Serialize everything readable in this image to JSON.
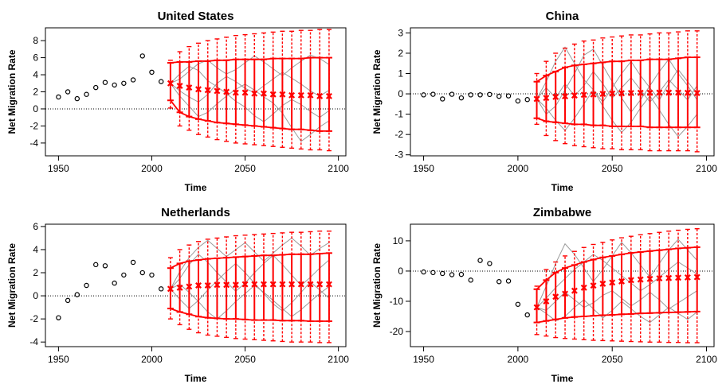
{
  "chart_data": [
    {
      "type": "scatter",
      "title": "United States",
      "xlabel": "Time",
      "ylabel": "Net Migration Rate",
      "xlim": [
        1943,
        2104
      ],
      "ylim": [
        -5.5,
        9.5
      ],
      "xticks": [
        1950,
        2000,
        2050,
        2100
      ],
      "yticks": [
        -4,
        -2,
        0,
        2,
        4,
        6,
        8
      ],
      "observed": {
        "x": [
          1950,
          1955,
          1960,
          1965,
          1970,
          1975,
          1980,
          1985,
          1990,
          1995,
          2000,
          2005
        ],
        "y": [
          1.4,
          2.0,
          1.2,
          1.7,
          2.5,
          3.1,
          2.8,
          3.0,
          3.4,
          6.2,
          4.3,
          3.2
        ]
      },
      "projection": {
        "x": [
          2010,
          2015,
          2020,
          2025,
          2030,
          2035,
          2040,
          2045,
          2050,
          2055,
          2060,
          2065,
          2070,
          2075,
          2080,
          2085,
          2090,
          2095
        ],
        "median": [
          3.0,
          2.7,
          2.5,
          2.3,
          2.2,
          2.1,
          2.0,
          1.9,
          1.9,
          1.8,
          1.8,
          1.7,
          1.7,
          1.6,
          1.6,
          1.6,
          1.5,
          1.5
        ],
        "pi80_lower": [
          1.0,
          -0.4,
          -0.9,
          -1.2,
          -1.4,
          -1.6,
          -1.7,
          -1.8,
          -1.9,
          -2.0,
          -2.1,
          -2.2,
          -2.3,
          -2.4,
          -2.4,
          -2.5,
          -2.6,
          -2.6
        ],
        "pi80_upper": [
          5.4,
          5.5,
          5.5,
          5.6,
          5.6,
          5.7,
          5.7,
          5.8,
          5.8,
          5.8,
          5.8,
          5.9,
          5.9,
          5.9,
          5.9,
          6.0,
          6.0,
          6.0
        ],
        "pi95_lower": [
          0.1,
          -2.0,
          -2.5,
          -3.0,
          -3.3,
          -3.6,
          -3.8,
          -4.0,
          -4.1,
          -4.2,
          -4.3,
          -4.4,
          -4.5,
          -4.6,
          -4.7,
          -4.8,
          -4.8,
          -4.9
        ],
        "pi95_upper": [
          5.7,
          6.7,
          7.3,
          7.7,
          8.0,
          8.2,
          8.4,
          8.6,
          8.7,
          8.8,
          8.9,
          9.0,
          9.1,
          9.1,
          9.2,
          9.2,
          9.3,
          9.3
        ],
        "trajectories": [
          [
            3.0,
            2.1,
            1.4,
            0.8,
            1.7,
            3.0,
            3.8,
            3.2,
            2.4,
            1.9,
            2.7,
            3.5,
            4.3,
            3.6,
            2.9,
            2.1,
            1.5,
            2.2
          ],
          [
            3.0,
            4.1,
            5.0,
            4.5,
            3.3,
            2.6,
            1.8,
            0.9,
            0.2,
            -0.8,
            -1.5,
            -0.6,
            0.4,
            1.1,
            0.5,
            -0.3,
            -1.0,
            -0.2
          ],
          [
            3.0,
            1.5,
            0.3,
            -0.9,
            -0.4,
            0.6,
            1.5,
            2.3,
            2.9,
            2.2,
            1.4,
            0.7,
            -0.5,
            -2.2,
            -3.8,
            -3.0,
            -2.1,
            -1.4
          ],
          [
            3.0,
            3.5,
            4.4,
            5.3,
            5.7,
            4.8,
            4.1,
            4.6,
            5.4,
            6.2,
            5.5,
            4.7,
            3.9,
            4.8,
            5.6,
            6.3,
            5.9,
            5.2
          ]
        ]
      }
    },
    {
      "type": "scatter",
      "title": "China",
      "xlabel": "Time",
      "ylabel": "Net Migration Rate",
      "xlim": [
        1943,
        2104
      ],
      "ylim": [
        -3.05,
        3.25
      ],
      "xticks": [
        1950,
        2000,
        2050,
        2100
      ],
      "yticks": [
        -3,
        -2,
        -1,
        0,
        1,
        2,
        3
      ],
      "observed": {
        "x": [
          1950,
          1955,
          1960,
          1965,
          1970,
          1975,
          1980,
          1985,
          1990,
          1995,
          2000,
          2005
        ],
        "y": [
          -0.05,
          -0.02,
          -0.25,
          -0.02,
          -0.2,
          -0.05,
          -0.05,
          -0.03,
          -0.12,
          -0.1,
          -0.35,
          -0.28
        ]
      },
      "projection": {
        "x": [
          2010,
          2015,
          2020,
          2025,
          2030,
          2035,
          2040,
          2045,
          2050,
          2055,
          2060,
          2065,
          2070,
          2075,
          2080,
          2085,
          2090,
          2095
        ],
        "median": [
          -0.25,
          -0.2,
          -0.15,
          -0.12,
          -0.08,
          -0.05,
          -0.03,
          0.0,
          0.02,
          0.03,
          0.04,
          0.05,
          0.05,
          0.06,
          0.06,
          0.06,
          0.05,
          0.04
        ],
        "pi80_lower": [
          -1.2,
          -1.35,
          -1.4,
          -1.45,
          -1.5,
          -1.5,
          -1.55,
          -1.55,
          -1.6,
          -1.6,
          -1.6,
          -1.6,
          -1.65,
          -1.65,
          -1.65,
          -1.65,
          -1.65,
          -1.65
        ],
        "pi80_upper": [
          0.6,
          0.9,
          1.1,
          1.3,
          1.4,
          1.45,
          1.5,
          1.55,
          1.6,
          1.6,
          1.65,
          1.65,
          1.7,
          1.7,
          1.7,
          1.75,
          1.8,
          1.8
        ],
        "pi95_lower": [
          -1.5,
          -2.05,
          -2.3,
          -2.45,
          -2.55,
          -2.6,
          -2.65,
          -2.7,
          -2.7,
          -2.75,
          -2.75,
          -2.75,
          -2.8,
          -2.8,
          -2.8,
          -2.8,
          -2.8,
          -2.85
        ],
        "pi95_upper": [
          1.0,
          1.6,
          2.0,
          2.25,
          2.45,
          2.6,
          2.65,
          2.75,
          2.8,
          2.85,
          2.9,
          2.9,
          2.95,
          3.0,
          3.0,
          3.05,
          3.1,
          3.1
        ],
        "trajectories": [
          [
            -0.25,
            0.6,
            1.6,
            2.3,
            1.5,
            0.7,
            0.2,
            -0.4,
            0.3,
            1.0,
            1.6,
            0.9,
            0.3,
            -0.3,
            0.5,
            1.2,
            0.6,
            0.0
          ],
          [
            -0.25,
            -1.0,
            -0.6,
            0.2,
            1.0,
            1.9,
            2.2,
            1.4,
            0.6,
            -0.2,
            -0.9,
            -0.3,
            0.4,
            1.1,
            1.7,
            1.0,
            0.4,
            -0.3
          ],
          [
            -0.25,
            -0.7,
            -1.3,
            -1.8,
            -1.2,
            -0.5,
            0.2,
            -0.6,
            -1.3,
            -1.9,
            -1.4,
            -0.7,
            -0.1,
            -0.8,
            -1.5,
            -2.1,
            -1.6,
            -1.0
          ],
          [
            -0.25,
            0.3,
            -0.2,
            0.5,
            -0.1,
            0.4,
            1.1,
            0.5,
            -0.2,
            0.3,
            0.8,
            0.2,
            -0.4,
            0.1,
            0.7,
            0.2,
            -0.3,
            0.4
          ]
        ]
      }
    },
    {
      "type": "scatter",
      "title": "Netherlands",
      "xlabel": "Time",
      "ylabel": "Net Migration Rate",
      "xlim": [
        1943,
        2104
      ],
      "ylim": [
        -4.4,
        6.2
      ],
      "xticks": [
        1950,
        2000,
        2050,
        2100
      ],
      "yticks": [
        -4,
        -2,
        0,
        2,
        4,
        6
      ],
      "observed": {
        "x": [
          1950,
          1955,
          1960,
          1965,
          1970,
          1975,
          1980,
          1985,
          1990,
          1995,
          2000,
          2005
        ],
        "y": [
          -1.9,
          -0.4,
          0.1,
          0.9,
          2.7,
          2.6,
          1.1,
          1.8,
          2.9,
          2.0,
          1.8,
          0.6
        ]
      },
      "projection": {
        "x": [
          2010,
          2015,
          2020,
          2025,
          2030,
          2035,
          2040,
          2045,
          2050,
          2055,
          2060,
          2065,
          2070,
          2075,
          2080,
          2085,
          2090,
          2095
        ],
        "median": [
          0.6,
          0.7,
          0.8,
          0.9,
          0.9,
          0.95,
          0.95,
          0.95,
          1.0,
          1.0,
          1.0,
          1.0,
          1.0,
          1.0,
          1.0,
          1.0,
          1.0,
          1.0
        ],
        "pi80_lower": [
          -1.1,
          -1.4,
          -1.6,
          -1.8,
          -1.9,
          -1.95,
          -2.0,
          -2.0,
          -2.05,
          -2.1,
          -2.1,
          -2.1,
          -2.15,
          -2.15,
          -2.15,
          -2.2,
          -2.2,
          -2.2
        ],
        "pi80_upper": [
          2.4,
          2.8,
          3.0,
          3.1,
          3.2,
          3.25,
          3.3,
          3.35,
          3.4,
          3.45,
          3.5,
          3.5,
          3.55,
          3.6,
          3.6,
          3.6,
          3.65,
          3.7
        ],
        "pi95_lower": [
          -2.0,
          -2.5,
          -2.9,
          -3.2,
          -3.4,
          -3.5,
          -3.6,
          -3.7,
          -3.75,
          -3.8,
          -3.85,
          -3.9,
          -3.95,
          -4.0,
          -4.0,
          -4.0,
          -4.05,
          -4.05
        ],
        "pi95_upper": [
          3.3,
          4.0,
          4.4,
          4.7,
          4.9,
          5.0,
          5.1,
          5.2,
          5.25,
          5.3,
          5.35,
          5.4,
          5.45,
          5.5,
          5.5,
          5.55,
          5.6,
          5.6
        ],
        "trajectories": [
          [
            0.6,
            1.5,
            2.7,
            3.6,
            2.9,
            2.0,
            1.2,
            0.4,
            1.1,
            2.0,
            2.8,
            3.5,
            2.7,
            1.8,
            0.9,
            1.6,
            2.4,
            3.1
          ],
          [
            0.6,
            -0.3,
            -1.1,
            -0.4,
            0.5,
            1.3,
            2.1,
            2.8,
            2.0,
            1.1,
            0.2,
            -0.7,
            -1.3,
            -0.6,
            0.3,
            1.2,
            0.5,
            -0.2
          ],
          [
            0.6,
            1.0,
            0.3,
            -0.5,
            -1.4,
            -2.0,
            -1.3,
            -0.5,
            0.2,
            0.9,
            0.3,
            -0.4,
            -1.1,
            -1.8,
            -1.2,
            -0.5,
            0.2,
            0.8
          ],
          [
            0.6,
            2.1,
            3.3,
            4.2,
            4.8,
            4.1,
            3.4,
            4.0,
            4.6,
            3.8,
            3.0,
            3.7,
            4.4,
            5.0,
            4.3,
            3.5,
            4.1,
            4.6
          ]
        ]
      }
    },
    {
      "type": "scatter",
      "title": "Zimbabwe",
      "xlabel": "Time",
      "ylabel": "Net Migration Rate",
      "xlim": [
        1943,
        2104
      ],
      "ylim": [
        -25,
        15.5
      ],
      "xticks": [
        1950,
        2000,
        2050,
        2100
      ],
      "yticks": [
        -20,
        -10,
        0,
        10
      ],
      "observed": {
        "x": [
          1950,
          1955,
          1960,
          1965,
          1970,
          1975,
          1980,
          1985,
          1990,
          1995,
          2000,
          2005
        ],
        "y": [
          -0.3,
          -0.5,
          -0.8,
          -1.2,
          -1.1,
          -3.0,
          3.5,
          2.5,
          -3.5,
          -3.3,
          -11.0,
          -14.5
        ]
      },
      "projection": {
        "x": [
          2010,
          2015,
          2020,
          2025,
          2030,
          2035,
          2040,
          2045,
          2050,
          2055,
          2060,
          2065,
          2070,
          2075,
          2080,
          2085,
          2090,
          2095
        ],
        "median": [
          -12.0,
          -10.0,
          -8.5,
          -7.5,
          -6.5,
          -5.5,
          -4.8,
          -4.2,
          -3.8,
          -3.4,
          -3.0,
          -2.8,
          -2.6,
          -2.4,
          -2.3,
          -2.2,
          -2.1,
          -2.0
        ],
        "pi80_lower": [
          -17.0,
          -16.5,
          -16.0,
          -15.5,
          -15.2,
          -15.0,
          -14.8,
          -14.6,
          -14.5,
          -14.3,
          -14.2,
          -14.0,
          -13.9,
          -13.8,
          -13.7,
          -13.6,
          -13.5,
          -13.4
        ],
        "pi80_upper": [
          -6.0,
          -3.0,
          -0.5,
          1.0,
          2.0,
          3.0,
          3.8,
          4.5,
          5.0,
          5.5,
          6.0,
          6.3,
          6.6,
          6.9,
          7.2,
          7.5,
          7.7,
          7.9
        ],
        "pi95_lower": [
          -21.0,
          -21.5,
          -22.0,
          -22.3,
          -22.5,
          -22.7,
          -22.9,
          -23.0,
          -23.1,
          -23.2,
          -23.3,
          -23.4,
          -23.5,
          -23.5,
          -23.6,
          -23.6,
          -23.7,
          -23.7
        ],
        "pi95_upper": [
          -5.0,
          0.5,
          3.0,
          5.0,
          6.5,
          7.8,
          8.8,
          9.5,
          10.3,
          11.0,
          11.5,
          12.0,
          12.4,
          12.8,
          13.2,
          13.5,
          13.8,
          14.0
        ],
        "trajectories": [
          [
            -12.0,
            -5.0,
            2.5,
            9.0,
            5.5,
            1.0,
            -3.5,
            0.5,
            5.0,
            9.5,
            6.0,
            2.0,
            -2.0,
            2.5,
            7.0,
            10.5,
            7.0,
            3.5
          ],
          [
            -12.0,
            -14.0,
            -16.5,
            -15.0,
            -12.0,
            -9.5,
            -12.5,
            -15.5,
            -13.0,
            -10.0,
            -12.5,
            -15.0,
            -17.0,
            -14.5,
            -12.0,
            -14.0,
            -16.0,
            -13.5
          ],
          [
            -12.0,
            -9.0,
            -5.5,
            -2.5,
            0.5,
            3.0,
            5.5,
            3.5,
            1.0,
            -1.5,
            -4.0,
            -6.5,
            -4.5,
            -2.0,
            0.5,
            3.0,
            1.0,
            -1.0
          ],
          [
            -12.0,
            -13.0,
            -10.0,
            -7.0,
            -9.5,
            -12.0,
            -10.5,
            -8.0,
            -6.5,
            -9.0,
            -11.5,
            -9.5,
            -7.0,
            -9.5,
            -12.5,
            -10.5,
            -8.5,
            -6.5
          ]
        ]
      }
    }
  ]
}
